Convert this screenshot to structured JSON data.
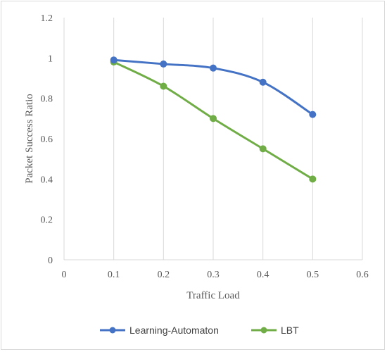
{
  "chart_data": {
    "type": "line",
    "title": "",
    "xlabel": "Traffic Load",
    "ylabel": "Packet Success Ratio",
    "xlim": [
      0,
      0.6
    ],
    "ylim": [
      0,
      1.2
    ],
    "x_ticks": [
      "0",
      "0.1",
      "0.2",
      "0.3",
      "0.4",
      "0.5",
      "0.6"
    ],
    "y_ticks": [
      "0",
      "0.2",
      "0.4",
      "0.6",
      "0.8",
      "1",
      "1.2"
    ],
    "x_tick_values": [
      0,
      0.1,
      0.2,
      0.3,
      0.4,
      0.5,
      0.6
    ],
    "y_tick_values": [
      0,
      0.2,
      0.4,
      0.6,
      0.8,
      1.0,
      1.2
    ],
    "grid": "vertical",
    "legend_position": "bottom",
    "smooth": true,
    "series": [
      {
        "name": "Learning-Automaton",
        "color": "#4472c4",
        "x": [
          0.1,
          0.2,
          0.3,
          0.4,
          0.5
        ],
        "y": [
          0.99,
          0.97,
          0.95,
          0.88,
          0.72
        ]
      },
      {
        "name": "LBT",
        "color": "#70ad47",
        "x": [
          0.1,
          0.2,
          0.3,
          0.4,
          0.5
        ],
        "y": [
          0.98,
          0.86,
          0.7,
          0.55,
          0.4
        ]
      }
    ]
  }
}
